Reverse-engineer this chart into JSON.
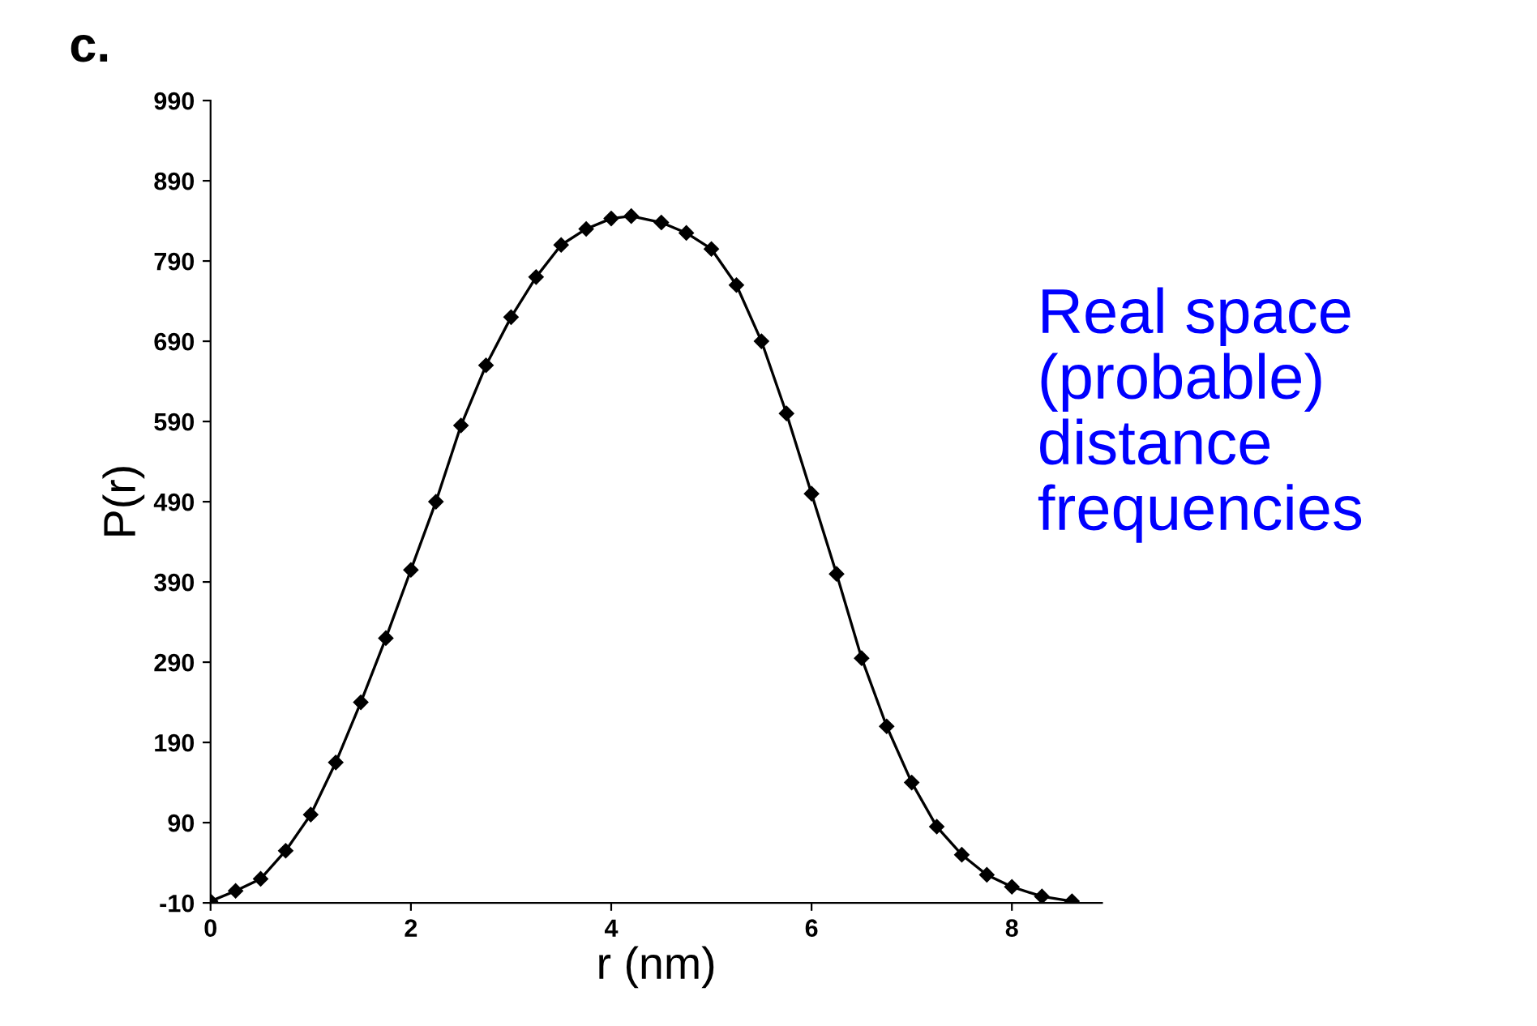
{
  "chart_data": {
    "type": "line",
    "xlabel": "r (nm)",
    "ylabel": "P(r)",
    "annotations": [
      "c.",
      "Real space\n(probable)\ndistance\nfrequencies"
    ],
    "x": [
      0,
      0.25,
      0.5,
      0.75,
      1.0,
      1.25,
      1.5,
      1.75,
      2.0,
      2.25,
      2.5,
      2.75,
      3.0,
      3.25,
      3.5,
      3.75,
      4.0,
      4.2,
      4.5,
      4.75,
      5.0,
      5.25,
      5.5,
      5.75,
      6.0,
      6.25,
      6.5,
      6.75,
      7.0,
      7.25,
      7.5,
      7.75,
      8.0,
      8.3,
      8.6
    ],
    "series": [
      {
        "color": "#000000",
        "values": [
          -8,
          5,
          20,
          55,
          100,
          165,
          240,
          320,
          405,
          490,
          585,
          660,
          720,
          770,
          810,
          830,
          843,
          846,
          838,
          825,
          805,
          760,
          690,
          600,
          500,
          400,
          295,
          210,
          140,
          85,
          50,
          25,
          10,
          -2,
          -8
        ]
      }
    ],
    "xlim": [
      0,
      8.9
    ],
    "ylim": [
      -10,
      990
    ],
    "xticks": [
      0,
      2,
      4,
      6,
      8
    ],
    "yticks": [
      -10,
      90,
      190,
      290,
      390,
      490,
      590,
      690,
      790,
      890,
      990
    ],
    "marker": "diamond",
    "line_style": "solid",
    "grid": false,
    "legend": false
  }
}
